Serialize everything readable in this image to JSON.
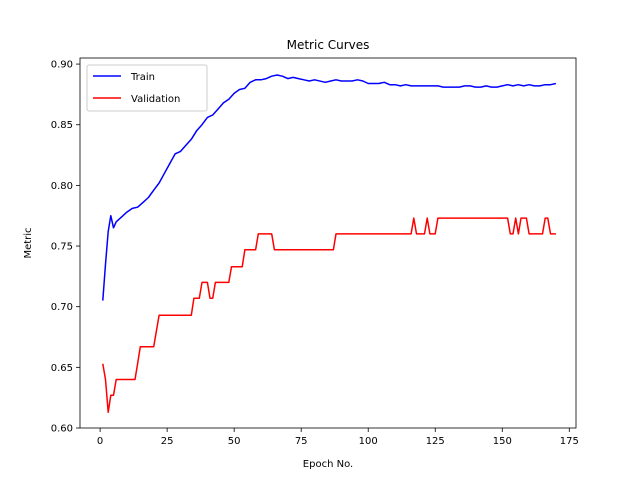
{
  "chart_data": {
    "type": "line",
    "title": "Metric Curves",
    "xlabel": "Epoch No.",
    "ylabel": "Metric",
    "xlim": [
      -7.5,
      177.5
    ],
    "ylim": [
      0.6,
      0.905
    ],
    "xticks": [
      0,
      25,
      50,
      75,
      100,
      125,
      150,
      175
    ],
    "yticks": [
      0.6,
      0.65,
      0.7,
      0.75,
      0.8,
      0.85,
      0.9
    ],
    "grid": false,
    "legend": "top-left",
    "series": [
      {
        "name": "Train",
        "color": "#0000ff",
        "x": [
          1,
          2,
          3,
          4,
          5,
          6,
          8,
          10,
          12,
          14,
          16,
          18,
          20,
          22,
          24,
          26,
          28,
          30,
          32,
          34,
          36,
          38,
          40,
          42,
          44,
          46,
          48,
          50,
          52,
          54,
          56,
          58,
          60,
          62,
          64,
          66,
          68,
          70,
          72,
          74,
          76,
          78,
          80,
          84,
          86,
          88,
          90,
          92,
          94,
          96,
          98,
          100,
          102,
          104,
          106,
          108,
          110,
          112,
          114,
          116,
          118,
          120,
          122,
          124,
          126,
          128,
          130,
          132,
          134,
          136,
          138,
          140,
          142,
          144,
          146,
          148,
          150,
          152,
          154,
          156,
          158,
          160,
          162,
          164,
          166,
          168,
          170
        ],
        "y": [
          0.705,
          0.735,
          0.762,
          0.775,
          0.765,
          0.77,
          0.774,
          0.778,
          0.781,
          0.782,
          0.786,
          0.79,
          0.796,
          0.802,
          0.81,
          0.818,
          0.826,
          0.828,
          0.833,
          0.838,
          0.845,
          0.85,
          0.856,
          0.858,
          0.863,
          0.868,
          0.871,
          0.876,
          0.879,
          0.88,
          0.885,
          0.887,
          0.887,
          0.888,
          0.89,
          0.891,
          0.89,
          0.888,
          0.889,
          0.888,
          0.887,
          0.886,
          0.887,
          0.885,
          0.886,
          0.887,
          0.886,
          0.886,
          0.886,
          0.887,
          0.886,
          0.884,
          0.884,
          0.884,
          0.885,
          0.883,
          0.883,
          0.882,
          0.883,
          0.882,
          0.882,
          0.882,
          0.882,
          0.882,
          0.882,
          0.881,
          0.881,
          0.881,
          0.881,
          0.882,
          0.882,
          0.881,
          0.881,
          0.882,
          0.881,
          0.881,
          0.882,
          0.883,
          0.882,
          0.883,
          0.882,
          0.883,
          0.882,
          0.882,
          0.883,
          0.883,
          0.884
        ]
      },
      {
        "name": "Validation",
        "color": "#ff0000",
        "x": [
          1,
          2,
          3,
          4,
          5,
          6,
          7,
          13,
          14,
          15,
          20,
          21,
          22,
          34,
          35,
          37,
          38,
          40,
          41,
          42,
          43,
          48,
          49,
          53,
          54,
          58,
          59,
          64,
          65,
          87,
          88,
          116,
          117,
          118,
          121,
          122,
          123,
          125,
          126,
          152,
          153,
          154,
          155,
          156,
          157,
          159,
          160,
          165,
          166,
          167,
          168,
          170
        ],
        "y": [
          0.653,
          0.64,
          0.613,
          0.627,
          0.627,
          0.64,
          0.64,
          0.64,
          0.653,
          0.667,
          0.667,
          0.68,
          0.693,
          0.693,
          0.707,
          0.707,
          0.72,
          0.72,
          0.707,
          0.707,
          0.72,
          0.72,
          0.733,
          0.733,
          0.747,
          0.747,
          0.76,
          0.76,
          0.747,
          0.747,
          0.76,
          0.76,
          0.773,
          0.76,
          0.76,
          0.773,
          0.76,
          0.76,
          0.773,
          0.773,
          0.76,
          0.76,
          0.773,
          0.76,
          0.773,
          0.773,
          0.76,
          0.76,
          0.773,
          0.773,
          0.76,
          0.76
        ]
      }
    ]
  }
}
